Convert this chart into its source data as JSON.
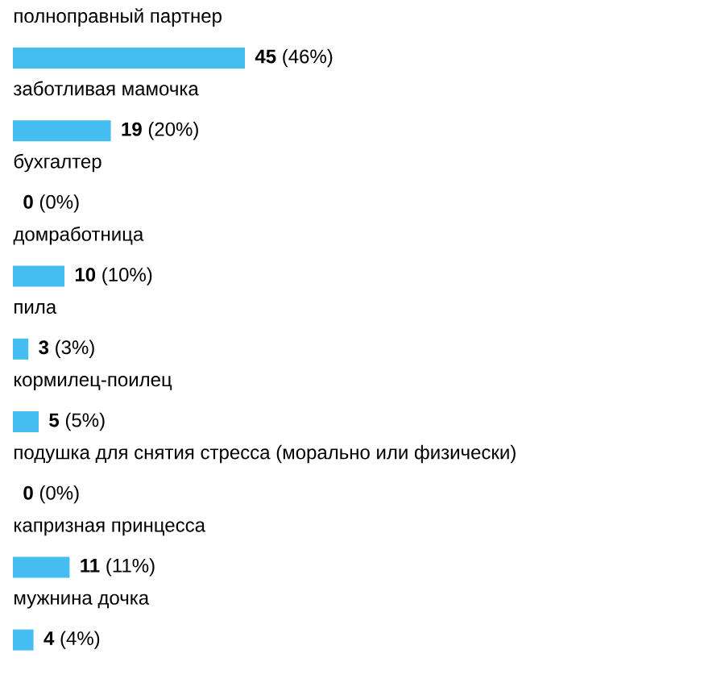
{
  "chart_data": {
    "type": "bar",
    "orientation": "horizontal",
    "categories": [
      "полноправный партнер",
      "заботливая мамочка",
      "бухгалтер",
      "домработница",
      "пила",
      "кормилец-поилец",
      "подушка для снятия стресса (морально или физически)",
      "капризная принцесса",
      "мужнина дочка"
    ],
    "values": [
      45,
      19,
      0,
      10,
      3,
      5,
      0,
      11,
      4
    ],
    "color": "#45bdf0",
    "value_labels": [
      "**45** (46%)",
      "**19** (20%)",
      "**0** (0%)",
      "**10** (10%)",
      "**3** (3%)",
      "**5** (5%)",
      "**0** (0%)",
      "**11** (11%)",
      "**4** (4%)"
    ]
  }
}
